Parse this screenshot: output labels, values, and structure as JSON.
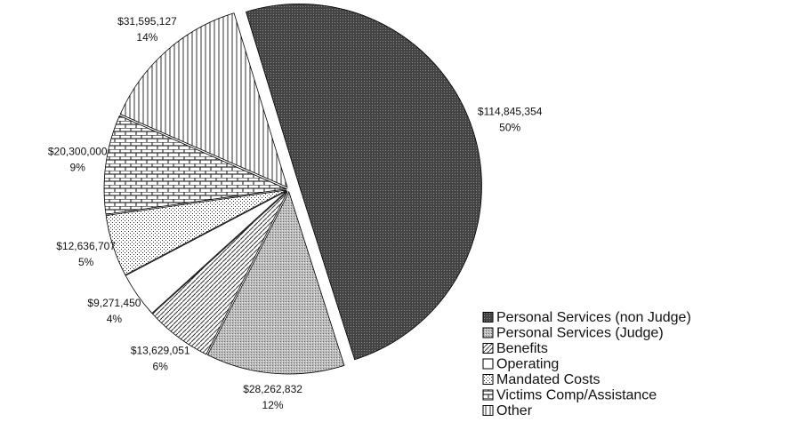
{
  "chart_data": {
    "type": "pie",
    "categories": [
      "Personal Services (non Judge)",
      "Personal Services (Judge)",
      "Benefits",
      "Operating",
      "Mandated Costs",
      "Victims Comp/Assistance",
      "Other"
    ],
    "values": [
      114845354,
      28262832,
      13629051,
      9271450,
      12636707,
      20300000,
      31595127
    ],
    "value_labels": [
      "$114,845,354",
      "$28,262,832",
      "$13,629,051",
      "$9,271,450",
      "$12,636,707",
      "$20,300,000",
      "$31,595,127"
    ],
    "percent_labels": [
      "50%",
      "12%",
      "6%",
      "4%",
      "5%",
      "9%",
      "14%"
    ],
    "legend": "lower right"
  }
}
